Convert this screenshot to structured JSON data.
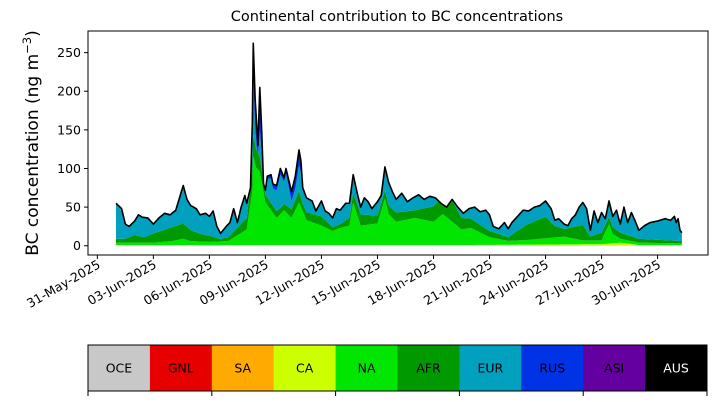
{
  "chart_data": {
    "type": "area",
    "stacked": true,
    "title": "Continental contribution to BC concentrations",
    "ylabel_main": "BC concentration (ng m",
    "ylabel_exp": "−3",
    "ylabel_close": ")",
    "xlabel": "",
    "ylim": [
      -12,
      278
    ],
    "yticks": [
      0,
      50,
      100,
      150,
      200,
      250
    ],
    "x_start": "2025-05-31",
    "xlim_days": [
      -0.5,
      32.7
    ],
    "xticks": [
      {
        "day": 0,
        "label": "31-May-2025"
      },
      {
        "day": 3,
        "label": "03-Jun-2025"
      },
      {
        "day": 6,
        "label": "06-Jun-2025"
      },
      {
        "day": 9,
        "label": "09-Jun-2025"
      },
      {
        "day": 12,
        "label": "12-Jun-2025"
      },
      {
        "day": 15,
        "label": "15-Jun-2025"
      },
      {
        "day": 18,
        "label": "18-Jun-2025"
      },
      {
        "day": 21,
        "label": "21-Jun-2025"
      },
      {
        "day": 24,
        "label": "24-Jun-2025"
      },
      {
        "day": 27,
        "label": "27-Jun-2025"
      },
      {
        "day": 30,
        "label": "30-Jun-2025"
      }
    ],
    "grid": false,
    "legend_position": "bottom colorbar",
    "series": [
      {
        "name": "OCE",
        "color": "#c8c8c8",
        "text_color": "#000000"
      },
      {
        "name": "GNL",
        "color": "#e60000",
        "text_color": "#000000"
      },
      {
        "name": "SA",
        "color": "#ffaa00",
        "text_color": "#000000"
      },
      {
        "name": "CA",
        "color": "#ccff00",
        "text_color": "#000000"
      },
      {
        "name": "NA",
        "color": "#00e600",
        "text_color": "#000000"
      },
      {
        "name": "AFR",
        "color": "#009900",
        "text_color": "#000000"
      },
      {
        "name": "EUR",
        "color": "#00a0be",
        "text_color": "#000000"
      },
      {
        "name": "RUS",
        "color": "#0032e6",
        "text_color": "#000000"
      },
      {
        "name": "ASI",
        "color": "#6400a0",
        "text_color": "#000000"
      },
      {
        "name": "AUS",
        "color": "#000000",
        "text_color": "#ffffff"
      }
    ],
    "total_keypoints": [
      [
        1.0,
        55
      ],
      [
        1.3,
        48
      ],
      [
        1.5,
        28
      ],
      [
        1.7,
        25
      ],
      [
        2.0,
        32
      ],
      [
        2.2,
        40
      ],
      [
        2.4,
        37
      ],
      [
        2.7,
        36
      ],
      [
        3.0,
        28
      ],
      [
        3.3,
        36
      ],
      [
        3.6,
        42
      ],
      [
        3.9,
        40
      ],
      [
        4.2,
        46
      ],
      [
        4.5,
        70
      ],
      [
        4.6,
        78
      ],
      [
        4.8,
        60
      ],
      [
        5.0,
        52
      ],
      [
        5.3,
        48
      ],
      [
        5.5,
        40
      ],
      [
        5.8,
        42
      ],
      [
        6.0,
        38
      ],
      [
        6.2,
        45
      ],
      [
        6.4,
        25
      ],
      [
        6.6,
        16
      ],
      [
        6.9,
        25
      ],
      [
        7.1,
        30
      ],
      [
        7.3,
        48
      ],
      [
        7.5,
        30
      ],
      [
        7.7,
        50
      ],
      [
        7.9,
        65
      ],
      [
        8.0,
        55
      ],
      [
        8.2,
        75
      ],
      [
        8.3,
        160
      ],
      [
        8.35,
        262
      ],
      [
        8.45,
        190
      ],
      [
        8.6,
        130
      ],
      [
        8.7,
        205
      ],
      [
        8.8,
        150
      ],
      [
        8.9,
        80
      ],
      [
        9.0,
        72
      ],
      [
        9.1,
        90
      ],
      [
        9.3,
        92
      ],
      [
        9.4,
        80
      ],
      [
        9.6,
        78
      ],
      [
        9.8,
        100
      ],
      [
        10.0,
        88
      ],
      [
        10.1,
        100
      ],
      [
        10.2,
        90
      ],
      [
        10.4,
        70
      ],
      [
        10.6,
        90
      ],
      [
        10.8,
        124
      ],
      [
        10.9,
        110
      ],
      [
        11.0,
        75
      ],
      [
        11.2,
        62
      ],
      [
        11.5,
        58
      ],
      [
        11.7,
        45
      ],
      [
        12.0,
        58
      ],
      [
        12.2,
        45
      ],
      [
        12.4,
        42
      ],
      [
        12.6,
        36
      ],
      [
        12.8,
        48
      ],
      [
        13.0,
        46
      ],
      [
        13.3,
        55
      ],
      [
        13.5,
        55
      ],
      [
        13.7,
        92
      ],
      [
        13.9,
        70
      ],
      [
        14.1,
        50
      ],
      [
        14.3,
        62
      ],
      [
        14.5,
        57
      ],
      [
        14.7,
        48
      ],
      [
        15.0,
        57
      ],
      [
        15.2,
        65
      ],
      [
        15.4,
        102
      ],
      [
        15.6,
        82
      ],
      [
        15.8,
        70
      ],
      [
        16.0,
        60
      ],
      [
        16.3,
        68
      ],
      [
        16.6,
        57
      ],
      [
        16.9,
        62
      ],
      [
        17.2,
        66
      ],
      [
        17.5,
        60
      ],
      [
        17.8,
        64
      ],
      [
        18.1,
        62
      ],
      [
        18.4,
        55
      ],
      [
        18.7,
        50
      ],
      [
        19.0,
        60
      ],
      [
        19.3,
        50
      ],
      [
        19.6,
        42
      ],
      [
        19.9,
        48
      ],
      [
        20.2,
        50
      ],
      [
        20.5,
        44
      ],
      [
        20.8,
        46
      ],
      [
        21.0,
        40
      ],
      [
        21.2,
        25
      ],
      [
        21.5,
        22
      ],
      [
        21.8,
        30
      ],
      [
        22.0,
        22
      ],
      [
        22.2,
        30
      ],
      [
        22.5,
        38
      ],
      [
        22.8,
        46
      ],
      [
        23.1,
        45
      ],
      [
        23.4,
        50
      ],
      [
        23.7,
        52
      ],
      [
        24.0,
        58
      ],
      [
        24.3,
        48
      ],
      [
        24.5,
        33
      ],
      [
        24.7,
        35
      ],
      [
        25.0,
        28
      ],
      [
        25.2,
        26
      ],
      [
        25.4,
        35
      ],
      [
        25.6,
        40
      ],
      [
        25.8,
        50
      ],
      [
        26.0,
        56
      ],
      [
        26.2,
        48
      ],
      [
        26.4,
        20
      ],
      [
        26.6,
        45
      ],
      [
        26.8,
        30
      ],
      [
        27.0,
        43
      ],
      [
        27.2,
        35
      ],
      [
        27.4,
        58
      ],
      [
        27.6,
        38
      ],
      [
        27.8,
        46
      ],
      [
        28.0,
        28
      ],
      [
        28.2,
        50
      ],
      [
        28.4,
        30
      ],
      [
        28.6,
        43
      ],
      [
        28.8,
        32
      ],
      [
        29.0,
        20
      ],
      [
        29.3,
        26
      ],
      [
        29.6,
        30
      ],
      [
        30.0,
        32
      ],
      [
        30.4,
        35
      ],
      [
        30.7,
        33
      ],
      [
        30.9,
        38
      ],
      [
        31.0,
        30
      ],
      [
        31.1,
        35
      ],
      [
        31.2,
        20
      ],
      [
        31.3,
        17
      ]
    ],
    "na_keypoints": [
      [
        1.0,
        3
      ],
      [
        3.0,
        3
      ],
      [
        4.0,
        5
      ],
      [
        4.6,
        8
      ],
      [
        5.0,
        5
      ],
      [
        6.0,
        4
      ],
      [
        7.0,
        5
      ],
      [
        8.0,
        20
      ],
      [
        8.3,
        70
      ],
      [
        8.35,
        115
      ],
      [
        8.5,
        100
      ],
      [
        8.7,
        95
      ],
      [
        9.0,
        55
      ],
      [
        9.3,
        45
      ],
      [
        9.6,
        35
      ],
      [
        10.0,
        45
      ],
      [
        10.4,
        35
      ],
      [
        10.8,
        55
      ],
      [
        11.2,
        32
      ],
      [
        12.0,
        25
      ],
      [
        12.6,
        18
      ],
      [
        13.0,
        22
      ],
      [
        13.5,
        25
      ],
      [
        13.7,
        55
      ],
      [
        14.1,
        25
      ],
      [
        15.0,
        28
      ],
      [
        15.4,
        60
      ],
      [
        15.6,
        40
      ],
      [
        16.0,
        30
      ],
      [
        17.0,
        35
      ],
      [
        18.0,
        30
      ],
      [
        18.5,
        40
      ],
      [
        19.0,
        30
      ],
      [
        19.5,
        20
      ],
      [
        20.0,
        22
      ],
      [
        21.0,
        10
      ],
      [
        22.0,
        5
      ],
      [
        23.0,
        6
      ],
      [
        24.0,
        8
      ],
      [
        25.0,
        10
      ],
      [
        26.0,
        5
      ],
      [
        27.0,
        5
      ],
      [
        27.4,
        25
      ],
      [
        27.6,
        12
      ],
      [
        28.0,
        5
      ],
      [
        29.0,
        3
      ],
      [
        31.3,
        2
      ]
    ],
    "afr_keypoints": [
      [
        1.0,
        5
      ],
      [
        1.5,
        5
      ],
      [
        2.0,
        10
      ],
      [
        2.5,
        7
      ],
      [
        3.0,
        12
      ],
      [
        4.0,
        18
      ],
      [
        4.6,
        20
      ],
      [
        5.0,
        14
      ],
      [
        5.5,
        10
      ],
      [
        6.0,
        8
      ],
      [
        6.6,
        3
      ],
      [
        7.0,
        5
      ],
      [
        8.0,
        15
      ],
      [
        8.3,
        30
      ],
      [
        9.0,
        10
      ],
      [
        10.0,
        8
      ],
      [
        10.8,
        15
      ],
      [
        11.0,
        10
      ],
      [
        12.0,
        12
      ],
      [
        12.6,
        5
      ],
      [
        13.0,
        5
      ],
      [
        13.5,
        10
      ],
      [
        14.0,
        15
      ],
      [
        15.0,
        10
      ],
      [
        16.0,
        12
      ],
      [
        17.0,
        10
      ],
      [
        18.0,
        20
      ],
      [
        19.0,
        28
      ],
      [
        19.5,
        15
      ],
      [
        20.0,
        12
      ],
      [
        21.0,
        8
      ],
      [
        22.0,
        5
      ],
      [
        23.0,
        20
      ],
      [
        24.0,
        28
      ],
      [
        24.5,
        15
      ],
      [
        25.0,
        10
      ],
      [
        26.0,
        20
      ],
      [
        26.4,
        5
      ],
      [
        27.0,
        10
      ],
      [
        28.0,
        8
      ],
      [
        29.0,
        5
      ],
      [
        31.3,
        3
      ]
    ],
    "rus_keypoints": [
      [
        1.0,
        0
      ],
      [
        8.0,
        0
      ],
      [
        8.3,
        10
      ],
      [
        8.35,
        20
      ],
      [
        8.45,
        25
      ],
      [
        8.6,
        15
      ],
      [
        8.7,
        40
      ],
      [
        8.8,
        25
      ],
      [
        8.9,
        5
      ],
      [
        9.0,
        2
      ],
      [
        9.3,
        5
      ],
      [
        9.8,
        8
      ],
      [
        10.0,
        5
      ],
      [
        10.8,
        20
      ],
      [
        10.9,
        15
      ],
      [
        11.0,
        3
      ],
      [
        11.5,
        0
      ],
      [
        31.3,
        0
      ]
    ],
    "asi_keypoints": [
      [
        1.0,
        0
      ],
      [
        8.2,
        0
      ],
      [
        8.35,
        18
      ],
      [
        8.5,
        10
      ],
      [
        8.7,
        15
      ],
      [
        8.9,
        0
      ],
      [
        31.3,
        0
      ]
    ],
    "ca_keypoints": [
      [
        1.0,
        1
      ],
      [
        10.0,
        1
      ],
      [
        20.0,
        1
      ],
      [
        27.0,
        2
      ],
      [
        28.0,
        4
      ],
      [
        29.0,
        1
      ],
      [
        31.3,
        1
      ]
    ]
  }
}
